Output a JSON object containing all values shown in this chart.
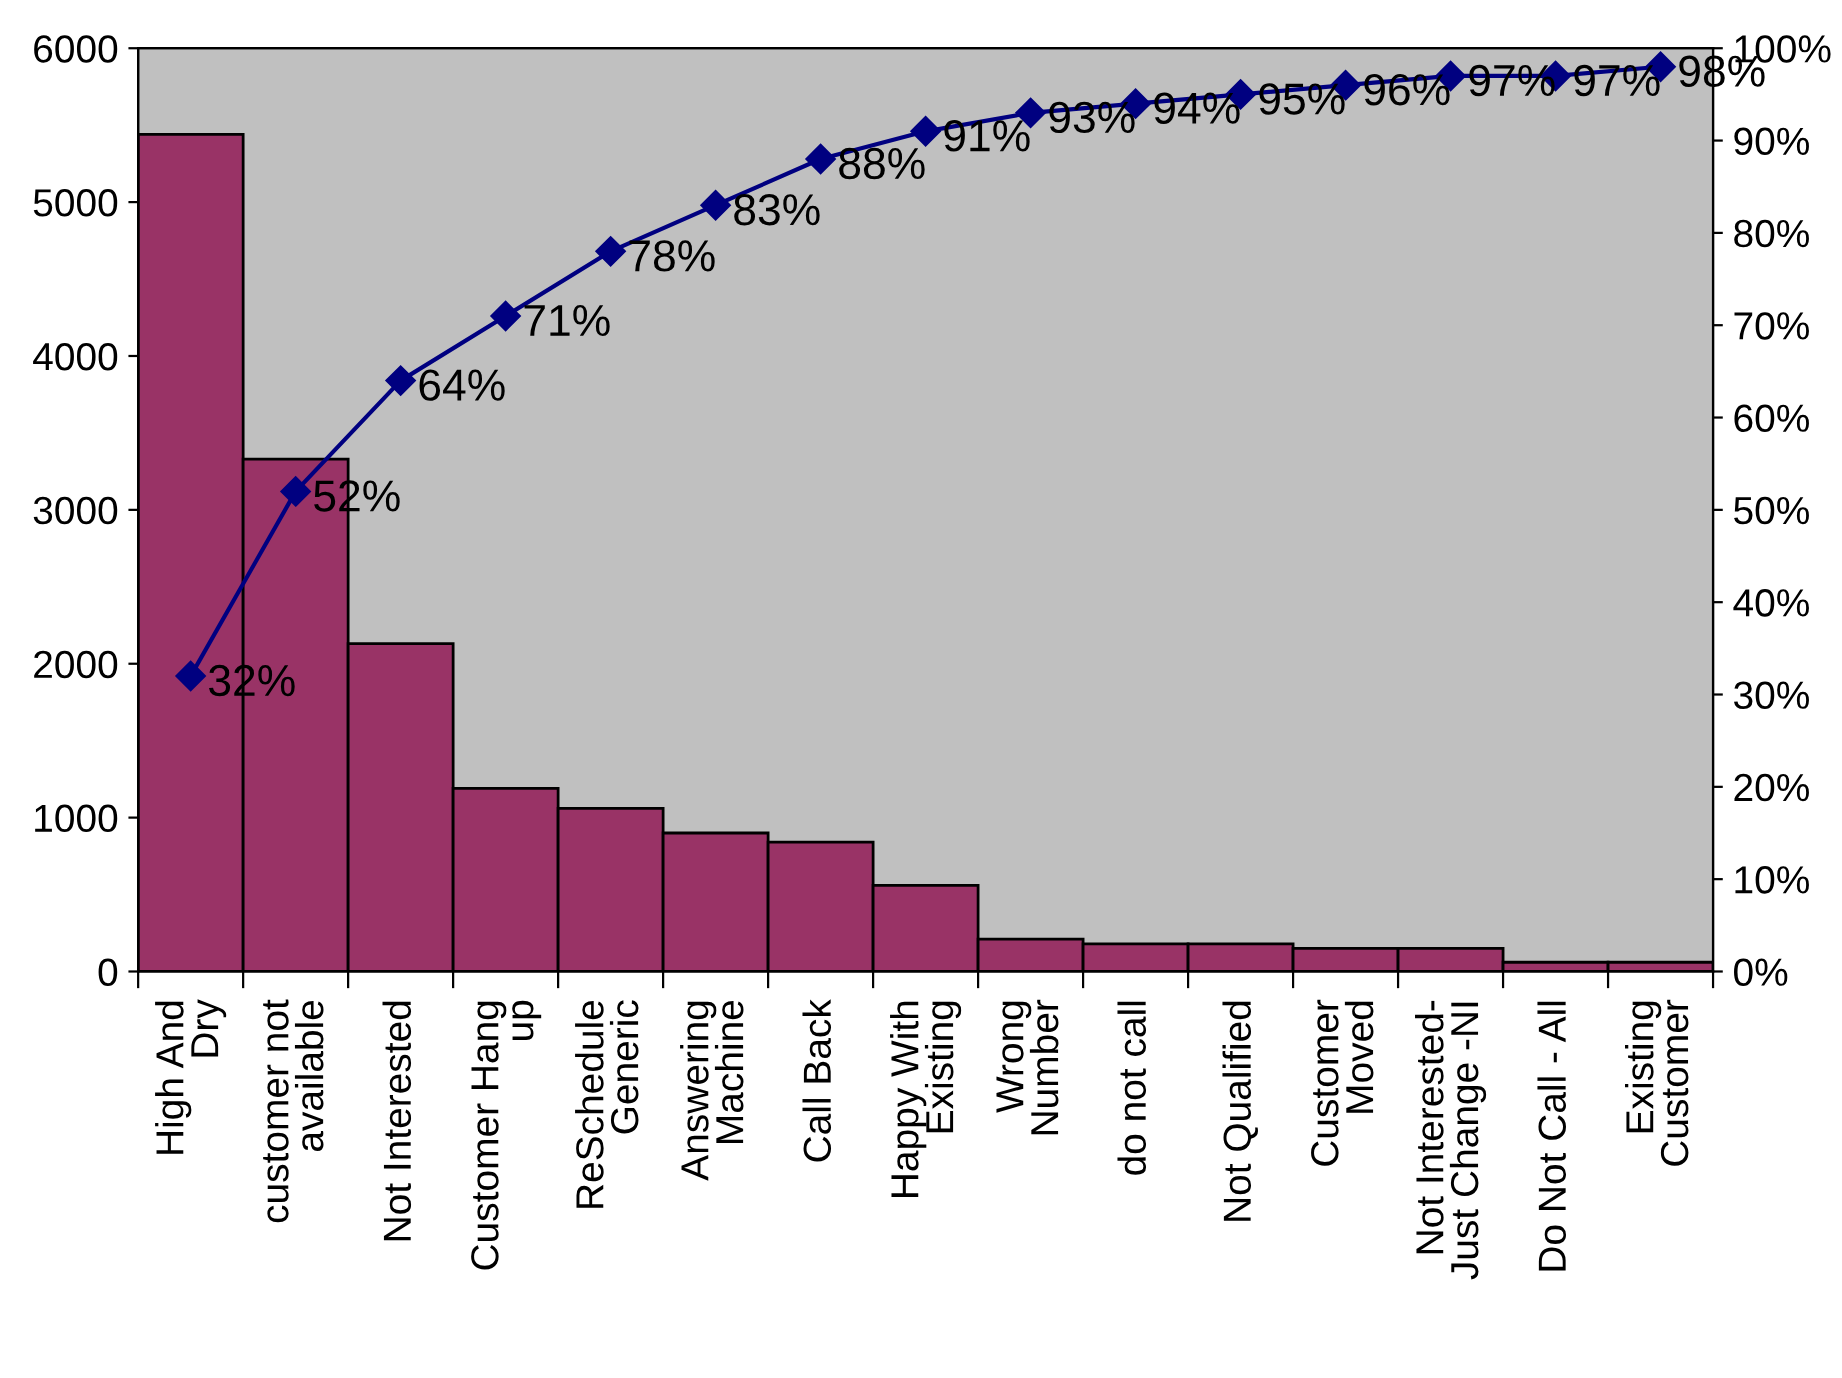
{
  "chart_data": {
    "type": "bar",
    "categories": [
      "High And\nDry",
      "customer not\navailable",
      "Not Interested",
      "Customer Hang\nup",
      "ReSchedule\nGeneric",
      "Answering\nMachine",
      "Call Back",
      "Happy With\nExisting",
      "Wrong\nNumber",
      "do not call",
      "Not Qualified",
      "Customer\nMoved",
      "Not Interested-\nJust Change -NI",
      "Do Not Call - All",
      "Existing\nCustomer"
    ],
    "series": [
      {
        "color": "#993366",
        "values": [
          5440,
          3330,
          2130,
          1190,
          1060,
          900,
          840,
          560,
          210,
          180,
          180,
          150,
          150,
          60,
          60
        ]
      },
      {
        "type": "line",
        "axis": "y2",
        "color": "#000080",
        "marker": "diamond",
        "values": [
          32,
          52,
          64,
          71,
          78,
          83,
          88,
          91,
          93,
          94,
          95,
          96,
          97,
          97,
          98
        ],
        "value_labels": [
          "32%",
          "52%",
          "64%",
          "71%",
          "78%",
          "83%",
          "88%",
          "91%",
          "93%",
          "94%",
          "95%",
          "96%",
          "97%",
          "97%",
          "98%"
        ]
      }
    ],
    "ylim": [
      0,
      6000
    ],
    "yticks": [
      0,
      1000,
      2000,
      3000,
      4000,
      5000,
      6000
    ],
    "y2lim": [
      0,
      100
    ],
    "y2ticks": [
      {
        "value": 0,
        "label": "0%"
      },
      {
        "value": 10,
        "label": "10%"
      },
      {
        "value": 20,
        "label": "20%"
      },
      {
        "value": 30,
        "label": "30%"
      },
      {
        "value": 40,
        "label": "40%"
      },
      {
        "value": 50,
        "label": "50%"
      },
      {
        "value": 60,
        "label": "60%"
      },
      {
        "value": 70,
        "label": "70%"
      },
      {
        "value": 80,
        "label": "80%"
      },
      {
        "value": 90,
        "label": "90%"
      },
      {
        "value": 100,
        "label": "100%"
      }
    ],
    "grid": false
  }
}
